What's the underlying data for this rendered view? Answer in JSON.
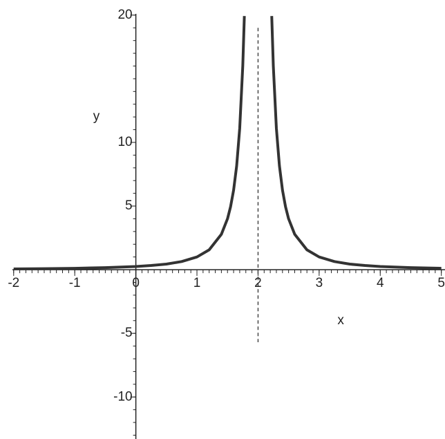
{
  "chart_data": {
    "type": "line",
    "x_label": "x",
    "y_label": "y",
    "x": [
      -2,
      -1.5,
      -1,
      -0.5,
      0,
      0.25,
      0.5,
      0.75,
      1,
      1.2,
      1.4,
      1.5,
      1.55,
      1.6,
      1.65,
      1.7,
      1.75,
      1.776,
      2,
      2.224,
      2.25,
      2.3,
      2.35,
      2.4,
      2.45,
      2.5,
      2.6,
      2.8,
      3,
      3.25,
      3.5,
      3.75,
      4,
      4.5,
      5
    ],
    "series": [
      {
        "color": "#333333",
        "values": [
          0.06,
          0.08,
          0.11,
          0.16,
          0.25,
          0.33,
          0.44,
          0.64,
          1,
          1.56,
          2.78,
          4,
          4.94,
          6.25,
          8.16,
          11.11,
          16,
          19.93,
          null,
          19.93,
          16,
          11.11,
          8.16,
          6.25,
          4.94,
          4,
          2.78,
          1.56,
          1,
          0.64,
          0.44,
          0.33,
          0.25,
          0.16,
          0.11
        ]
      }
    ],
    "asymptote": {
      "x": 2,
      "y": [
        19,
        -5.7
      ]
    },
    "xlim": [
      -2.02,
      5.06
    ],
    "ylim": [
      -13.3,
      20.1
    ],
    "xticks": [
      -2,
      -1,
      0,
      1,
      2,
      3,
      4,
      5
    ],
    "yticks": [
      -10,
      -5,
      5,
      10,
      20
    ]
  }
}
